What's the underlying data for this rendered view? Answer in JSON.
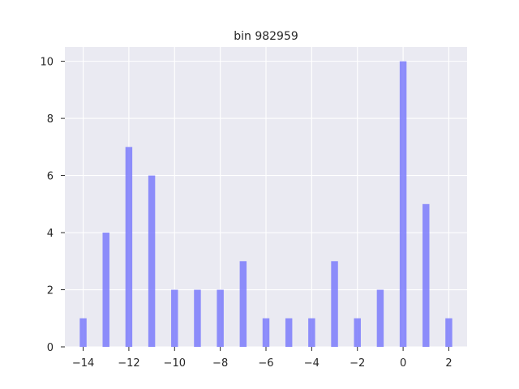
{
  "chart_data": {
    "type": "bar",
    "title": "bin 982959",
    "xlabel": "",
    "ylabel": "",
    "x": [
      -14,
      -13,
      -12,
      -11,
      -10,
      -9,
      -8,
      -7,
      -6,
      -5,
      -4,
      -3,
      -2,
      -1,
      0,
      1,
      2
    ],
    "values": [
      1,
      4,
      7,
      6,
      2,
      2,
      2,
      3,
      1,
      1,
      1,
      3,
      1,
      2,
      10,
      5,
      1
    ],
    "xlim": [
      -14.8,
      2.8
    ],
    "ylim": [
      0,
      10.5
    ],
    "xticks": [
      -14,
      -12,
      -10,
      -8,
      -6,
      -4,
      -2,
      0,
      2
    ],
    "xtick_labels": [
      "−14",
      "−12",
      "−10",
      "−8",
      "−6",
      "−4",
      "−2",
      "0",
      "2"
    ],
    "yticks": [
      0,
      2,
      4,
      6,
      8,
      10
    ],
    "ytick_labels": [
      "0",
      "2",
      "4",
      "6",
      "8",
      "10"
    ],
    "grid": true,
    "legend": "none",
    "colors": {
      "bar": "#7b7bfb",
      "background": "#eaeaf2",
      "grid": "#ffffff",
      "text": "#262626"
    }
  }
}
